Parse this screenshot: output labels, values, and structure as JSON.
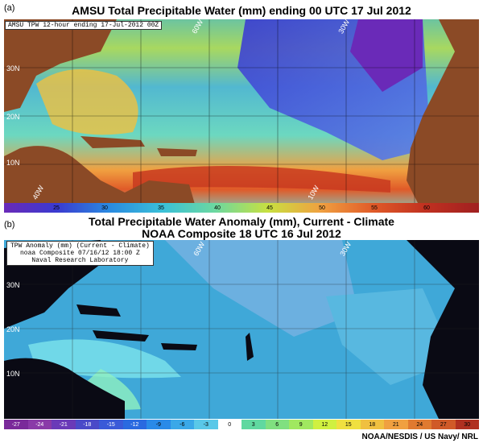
{
  "panel_a": {
    "letter": "(a)",
    "title": "AMSU Total Precipitable Water (mm) ending 00 UTC 17 Jul 2012",
    "inset": "AMSU TPW 12-hour ending 17-Jul-2012 00Z",
    "lat_labels": [
      "30N",
      "20N",
      "10N"
    ],
    "lon_labels": [
      "60W",
      "30W",
      "40W",
      "10W"
    ],
    "colorbar": [
      "25",
      "30",
      "35",
      "40",
      "45",
      "50",
      "55",
      "60"
    ],
    "colors": {
      "land": "#8B4A26",
      "ocean_low": "#2a5fd6",
      "ocean_high": "#e0602a"
    }
  },
  "panel_b": {
    "letter": "(b)",
    "title_line1": "Total Precipitable Water Anomaly (mm), Current - Climate",
    "title_line2": "NOAA Composite 18 UTC 16 Jul 2012",
    "inset_line1": "TPW Anomaly (mm) (Current - Climate)",
    "inset_line2": "noaa Composite 07/16/12 18:00 Z",
    "inset_line3": "Naval Research Laboratory",
    "lat_labels": [
      "30N",
      "20N",
      "10N"
    ],
    "lon_labels": [
      "60W",
      "30W"
    ],
    "colorbar": [
      "-27",
      "-24",
      "-21",
      "-18",
      "-15",
      "-12",
      "-9",
      "-6",
      "-3",
      "0",
      "3",
      "6",
      "9",
      "12",
      "15",
      "18",
      "21",
      "24",
      "27",
      "30"
    ],
    "colors": {
      "land": "#0a0a14",
      "ocean": "#3fa8d8"
    }
  },
  "credit": "NOAA/NESDIS / US Navy/ NRL"
}
